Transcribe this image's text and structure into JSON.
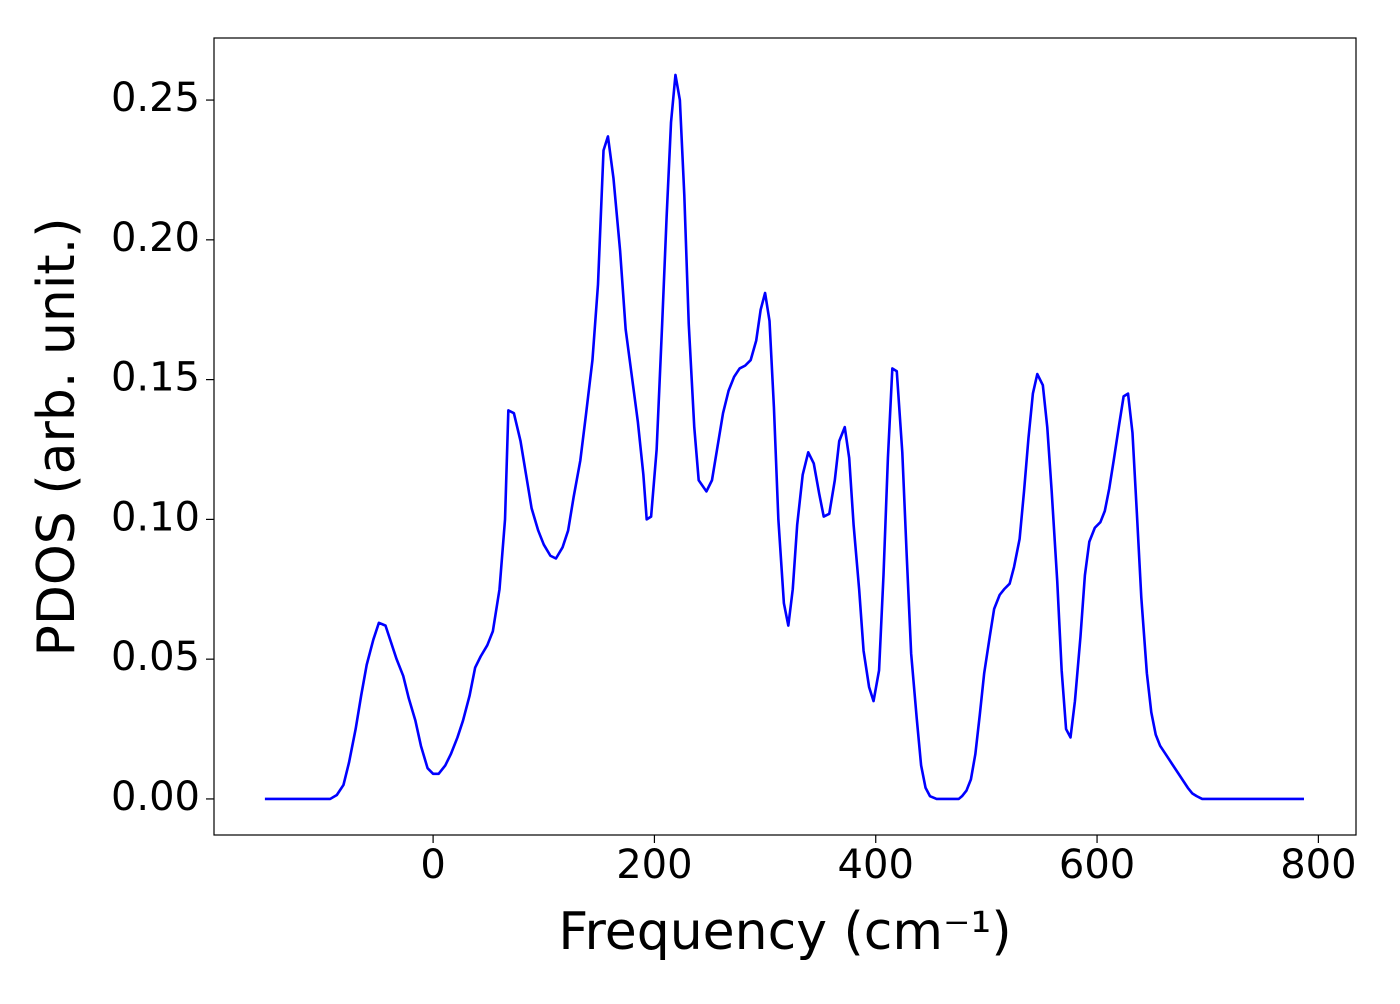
{
  "chart_data": {
    "type": "line",
    "xlabel": "Frequency (cm⁻¹)",
    "ylabel": "PDOS (arb. unit.)",
    "color": "#0000ff",
    "x": [
      -152,
      -120,
      -93,
      -87,
      -81,
      -76,
      -70,
      -65,
      -60,
      -54,
      -49,
      -43,
      -38,
      -33,
      -27,
      -22,
      -16,
      -11,
      -5,
      0,
      5,
      11,
      16,
      22,
      27,
      33,
      38,
      43,
      49,
      54,
      60,
      65,
      68,
      73,
      79,
      84,
      89,
      95,
      100,
      106,
      111,
      117,
      122,
      127,
      133,
      138,
      144,
      149,
      154,
      158,
      163,
      169,
      174,
      180,
      185,
      190,
      193,
      197,
      202,
      207,
      211,
      215,
      219,
      223,
      227,
      231,
      236,
      240,
      247,
      252,
      257,
      262,
      267,
      272,
      277,
      282,
      287,
      292,
      296,
      300,
      304,
      308,
      312,
      317,
      321,
      325,
      329,
      334,
      339,
      344,
      349,
      353,
      358,
      363,
      367,
      372,
      376,
      380,
      385,
      389,
      394,
      398,
      403,
      407,
      411,
      415,
      419,
      424,
      428,
      432,
      437,
      441,
      445,
      449,
      455,
      460,
      467,
      475,
      478,
      482,
      486,
      490,
      494,
      498,
      503,
      507,
      512,
      516,
      521,
      525,
      530,
      534,
      538,
      542,
      546,
      551,
      555,
      559,
      564,
      568,
      572,
      576,
      580,
      585,
      589,
      593,
      598,
      603,
      607,
      611,
      615,
      620,
      624,
      628,
      632,
      636,
      640,
      645,
      649,
      653,
      657,
      662,
      667,
      672,
      677,
      682,
      686,
      690,
      695,
      720,
      760,
      787
    ],
    "values": [
      0,
      0,
      0,
      0.0014,
      0.005,
      0.013,
      0.025,
      0.037,
      0.048,
      0.057,
      0.063,
      0.062,
      0.056,
      0.05,
      0.044,
      0.036,
      0.028,
      0.019,
      0.011,
      0.009,
      0.009,
      0.012,
      0.016,
      0.022,
      0.028,
      0.037,
      0.047,
      0.051,
      0.055,
      0.06,
      0.075,
      0.1,
      0.139,
      0.138,
      0.128,
      0.116,
      0.104,
      0.096,
      0.091,
      0.087,
      0.086,
      0.09,
      0.096,
      0.108,
      0.121,
      0.137,
      0.157,
      0.184,
      0.232,
      0.237,
      0.222,
      0.196,
      0.168,
      0.15,
      0.135,
      0.116,
      0.1,
      0.101,
      0.125,
      0.17,
      0.208,
      0.242,
      0.259,
      0.25,
      0.216,
      0.17,
      0.133,
      0.114,
      0.11,
      0.114,
      0.126,
      0.138,
      0.146,
      0.151,
      0.154,
      0.155,
      0.157,
      0.164,
      0.175,
      0.181,
      0.171,
      0.14,
      0.1,
      0.07,
      0.062,
      0.075,
      0.098,
      0.116,
      0.124,
      0.12,
      0.109,
      0.101,
      0.102,
      0.114,
      0.128,
      0.133,
      0.122,
      0.098,
      0.075,
      0.053,
      0.04,
      0.035,
      0.046,
      0.08,
      0.122,
      0.154,
      0.153,
      0.124,
      0.087,
      0.052,
      0.029,
      0.012,
      0.004,
      0.001,
      0,
      0,
      0,
      0,
      0.001,
      0.003,
      0.007,
      0.016,
      0.03,
      0.045,
      0.058,
      0.068,
      0.073,
      0.075,
      0.077,
      0.083,
      0.093,
      0.11,
      0.129,
      0.145,
      0.152,
      0.148,
      0.133,
      0.11,
      0.078,
      0.046,
      0.025,
      0.022,
      0.035,
      0.058,
      0.08,
      0.092,
      0.097,
      0.099,
      0.103,
      0.111,
      0.121,
      0.134,
      0.144,
      0.145,
      0.131,
      0.102,
      0.072,
      0.045,
      0.031,
      0.023,
      0.019,
      0.016,
      0.013,
      0.01,
      0.007,
      0.004,
      0.002,
      0.001,
      0,
      0,
      0,
      0
    ],
    "xlim": [
      -198,
      834
    ],
    "ylim": [
      -0.0129,
      0.2722
    ],
    "xticks": [
      0,
      200,
      400,
      600,
      800
    ],
    "yticks": [
      {
        "value": 0,
        "label": "0.00"
      },
      0.05,
      {
        "value": 0.1,
        "label": "0.10"
      },
      0.15,
      {
        "value": 0.2,
        "label": "0.20"
      },
      0.25
    ]
  }
}
